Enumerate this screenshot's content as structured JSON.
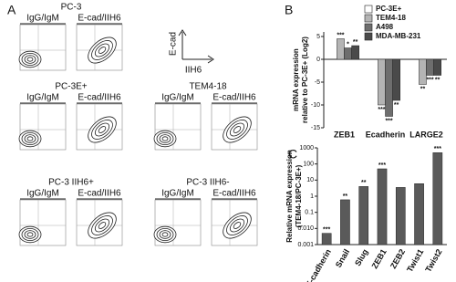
{
  "panel_a": {
    "label": "A",
    "axis": {
      "y": "E-cad",
      "x": "IIH6"
    },
    "plots": [
      {
        "title": "PC-3",
        "columns": [
          "IgG/IgM",
          "E-cad/IIH6"
        ]
      },
      {
        "title": "PC-3E+",
        "columns": [
          "IgG/IgM",
          "E-cad/IIH6"
        ]
      },
      {
        "title": "TEM4-18",
        "columns": [
          "IgG/IgM",
          "E-cad/IIH6"
        ]
      },
      {
        "title": "PC-3 IIH6+",
        "columns": [
          "IgG/IgM",
          "E-cad/IIH6"
        ]
      },
      {
        "title": "PC-3 IIH6-",
        "columns": [
          "IgG/IgM",
          "E-cad/IIH6"
        ]
      }
    ]
  },
  "chart_data": [
    {
      "type": "bar",
      "panel": "B",
      "ylabel": [
        "mRNA expression",
        "relative to PC-3E+ (Log2)"
      ],
      "categories": [
        "ZEB1",
        "Ecadherin",
        "LARGE2"
      ],
      "series": [
        {
          "name": "PC-3E+",
          "color": "#ffffff",
          "values": [
            0,
            0,
            0
          ],
          "significance": [
            null,
            null,
            null
          ]
        },
        {
          "name": "TEM4-18",
          "color": "#b4b4b4",
          "values": [
            4.5,
            -10,
            -5.5
          ],
          "significance": [
            "***",
            "***",
            "**"
          ]
        },
        {
          "name": "A498",
          "color": "#6e6e6e",
          "values": [
            2.5,
            -12.5,
            -3.5
          ],
          "significance": [
            "*",
            "***",
            "***"
          ]
        },
        {
          "name": "MDA-MB-231",
          "color": "#4a4a4a",
          "values": [
            3,
            -9,
            -3.5
          ],
          "significance": [
            "**",
            "**",
            "**"
          ]
        }
      ],
      "ylim": [
        -15,
        6
      ],
      "yticks": [
        -15,
        -10,
        -5,
        0,
        5
      ],
      "legend": "top-right"
    },
    {
      "type": "bar",
      "panel": "C",
      "ylabel": [
        "Relative mRNA expression",
        "(TEM4-18/PC-3E+)"
      ],
      "categories": [
        "E-cadherin",
        "Snail",
        "Slug",
        "ZEB1",
        "ZEB2",
        "Twist1",
        "Twist2"
      ],
      "values": [
        0.005,
        0.6,
        4,
        50,
        3.5,
        6,
        500
      ],
      "color": "#5a5a5a",
      "significance": [
        "***",
        "**",
        "**",
        "***",
        null,
        null,
        "***"
      ],
      "ylim": [
        0.001,
        1000
      ],
      "log_scale": true,
      "yticks": [
        0.001,
        {
          "value": 0.01,
          "label": "0.010"
        },
        0.1,
        1,
        10,
        100,
        1000
      ]
    }
  ]
}
